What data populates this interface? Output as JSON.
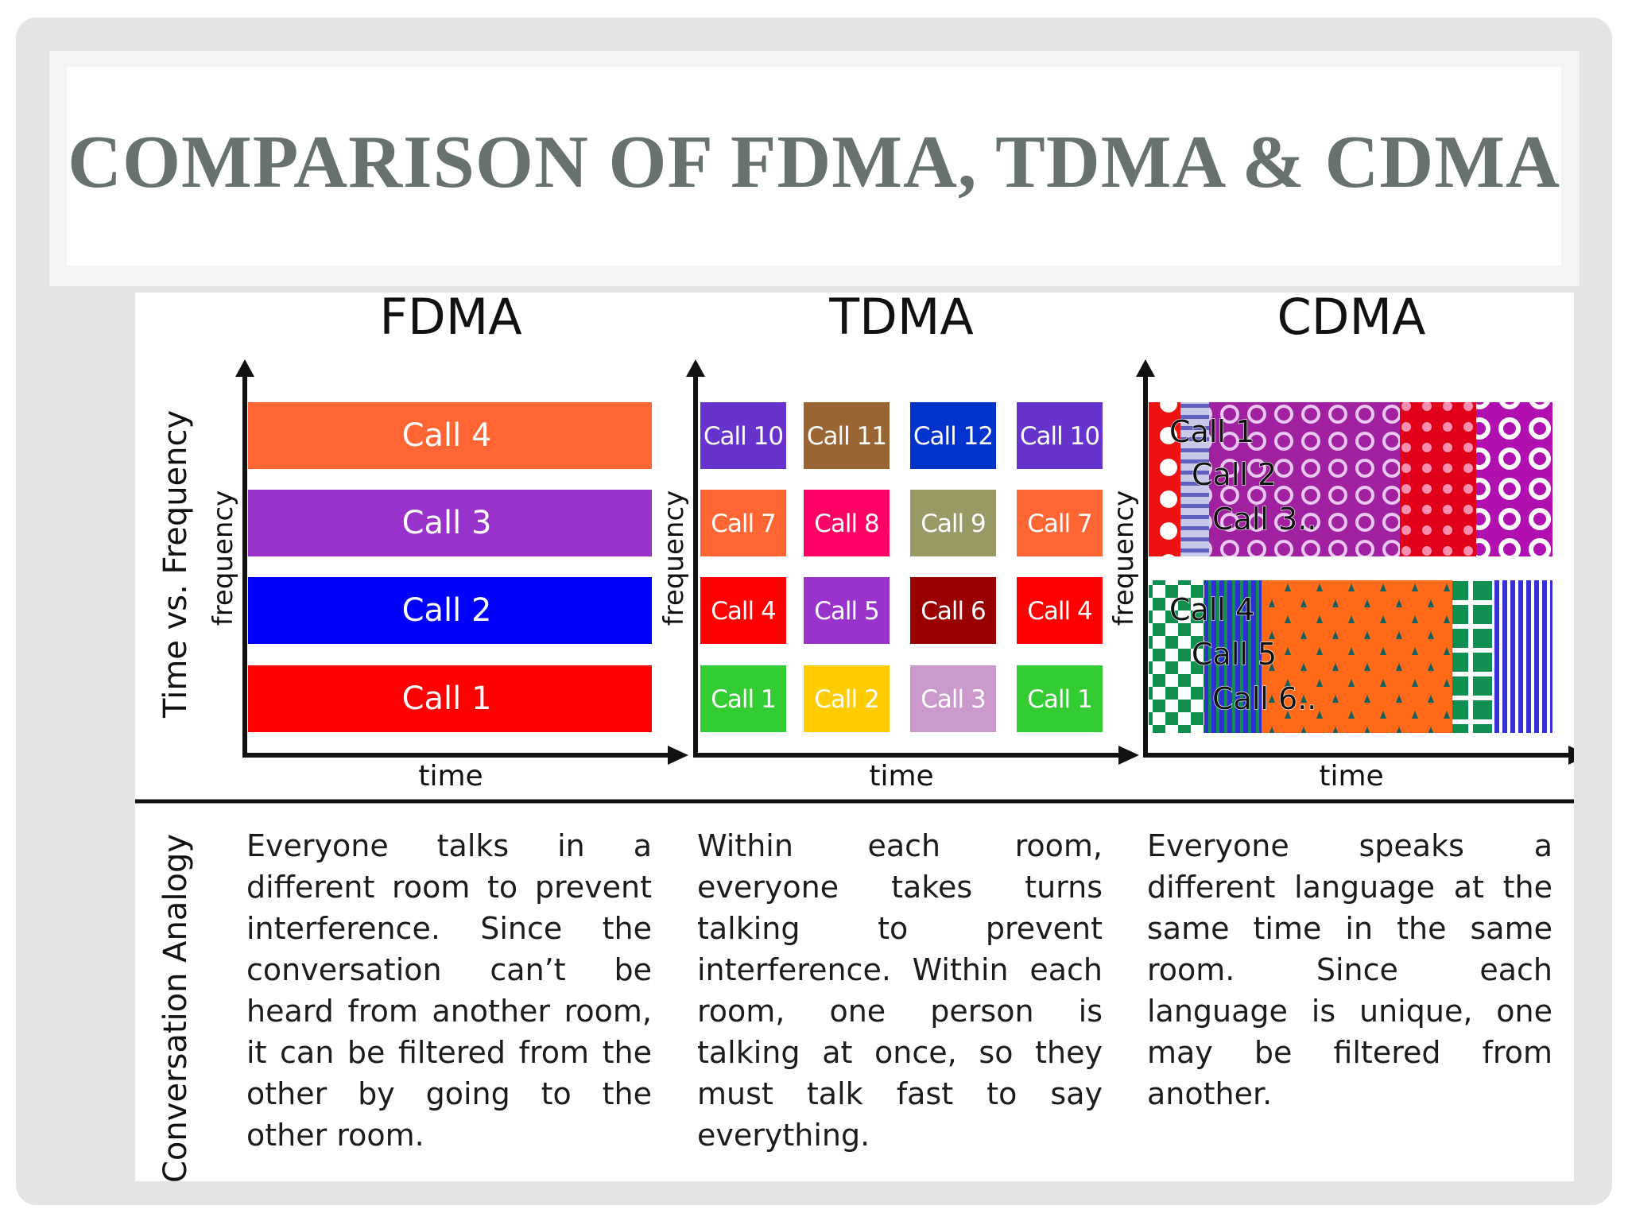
{
  "slide": {
    "title": "COMPARISON OF FDMA, TDMA & CDMA"
  },
  "figure": {
    "row_labels": {
      "top": "Time vs. Frequency",
      "bottom": "Conversation Analogy"
    },
    "axis_labels": {
      "y": "frequency",
      "x": "time"
    },
    "panels": [
      {
        "name": "FDMA",
        "bands": [
          {
            "label": "Call 4",
            "color": "#ff6633"
          },
          {
            "label": "Call 3",
            "color": "#9933cc"
          },
          {
            "label": "Call 2",
            "color": "#0000ff"
          },
          {
            "label": "Call 1",
            "color": "#ff0000"
          }
        ],
        "analogy": "Everyone talks in a different room to prevent interference. Since the conversation can’t be heard from another room, it can be filtered from the other by going to the other room."
      },
      {
        "name": "TDMA",
        "grid": [
          [
            {
              "label": "Call 10",
              "color": "#6633cc"
            },
            {
              "label": "Call 11",
              "color": "#996633"
            },
            {
              "label": "Call 12",
              "color": "#0033cc"
            },
            {
              "label": "Call 10",
              "color": "#6633cc"
            }
          ],
          [
            {
              "label": "Call 7",
              "color": "#ff6633"
            },
            {
              "label": "Call 8",
              "color": "#ff0066"
            },
            {
              "label": "Call 9",
              "color": "#999966"
            },
            {
              "label": "Call 7",
              "color": "#ff6633"
            }
          ],
          [
            {
              "label": "Call 4",
              "color": "#ff0000"
            },
            {
              "label": "Call 5",
              "color": "#9933cc"
            },
            {
              "label": "Call 6",
              "color": "#990000"
            },
            {
              "label": "Call 4",
              "color": "#ff0000"
            }
          ],
          [
            {
              "label": "Call 1",
              "color": "#33cc33"
            },
            {
              "label": "Call 2",
              "color": "#ffcc00"
            },
            {
              "label": "Call 3",
              "color": "#cc99cc"
            },
            {
              "label": "Call 1",
              "color": "#33cc33"
            }
          ]
        ],
        "analogy": "Within each room, everyone takes turns talking to prevent interference. Within each room, one person is talking at once, so they must talk fast to say everything."
      },
      {
        "name": "CDMA",
        "upper_labels": [
          "Call 1",
          "Call 2",
          "Call 3.."
        ],
        "lower_labels": [
          "Call 4",
          "Call 5",
          "Call 6.."
        ],
        "analogy": "Everyone speaks a different language at the same time in the same room. Since each language is unique, one may be filtered from another."
      }
    ]
  }
}
